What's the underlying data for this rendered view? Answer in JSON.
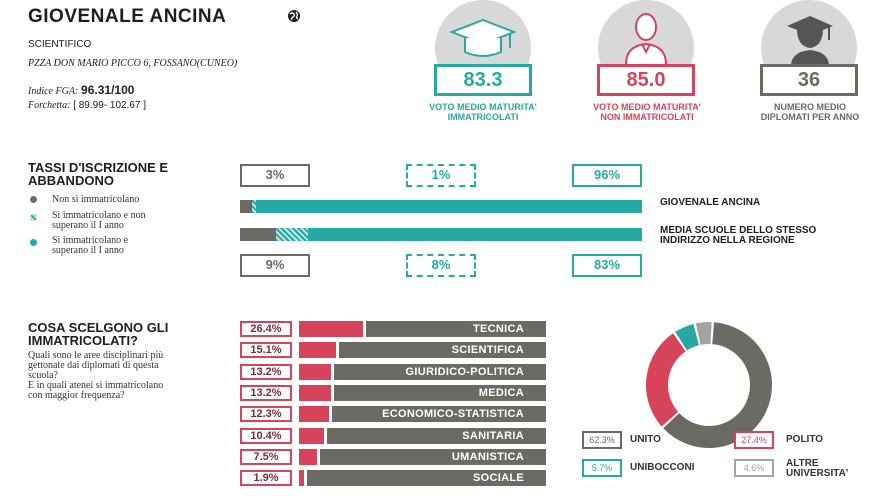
{
  "header": {
    "school_name": "GIOVENALE ANCINA",
    "type": "SCIENTIFICO",
    "address": "PZZA DON MARIO PICCO 6, FOSSANO(CUNEO)",
    "fga_label": "Indice FGA:",
    "fga_value": "96.31/100",
    "range_label": "Forchetta:",
    "range_value": "[ 89.99- 102.67 ]"
  },
  "metrics": [
    {
      "value": "83.3",
      "caption_line1": "VOTO MEDIO MATURITA'",
      "caption_line2": "IMMATRICOLATI",
      "icon": "graduation-cap-icon",
      "color": "#27a9a3"
    },
    {
      "value": "85.0",
      "caption_line1": "VOTO MEDIO MATURITA'",
      "caption_line2": "NON IMMATRICOLATI",
      "icon": "person-icon",
      "color": "#d7435a"
    },
    {
      "value": "36",
      "caption_line1": "NUMERO MEDIO",
      "caption_line2": "DIPLOMATI PER ANNO",
      "icon": "graduate-person-icon",
      "color": "#6b6b63"
    }
  ],
  "enrollment": {
    "title_line1": "TASSI D'ISCRIZIONE E",
    "title_line2": "ABBANDONO",
    "legend": [
      {
        "line1": "Non si immatricolano",
        "line2": ""
      },
      {
        "line1": "Si immatricolano e non",
        "line2": "superano il I anno"
      },
      {
        "line1": "Si immatricolano e",
        "line2": "superano il I anno"
      }
    ],
    "school": {
      "label": "GIOVENALE ANCINA",
      "values": [
        "3%",
        "1%",
        "96%"
      ],
      "fractions": [
        0.03,
        0.01,
        0.96
      ]
    },
    "region": {
      "label_line1": "MEDIA SCUOLE DELLO STESSO",
      "label_line2": "INDIRIZZO NELLA REGIONE",
      "values": [
        "9%",
        "8%",
        "83%"
      ],
      "fractions": [
        0.09,
        0.08,
        0.83
      ]
    }
  },
  "choices": {
    "title_line1": "COSA SCELGONO GLI",
    "title_line2": "IMMATRICOLATI?",
    "question1_line1": "Quali sono le aree disciplinari più",
    "question1_line2": "gettonate dai diplomati di questa",
    "question1_line3": "scuola?",
    "question2_line1": "E in quali atenei si immatricolano",
    "question2_line2": "con maggior frequenza?",
    "areas": [
      {
        "pct": "26.4%",
        "label": "TECNICA",
        "value": 26.4
      },
      {
        "pct": "15.1%",
        "label": "SCIENTIFICA",
        "value": 15.1
      },
      {
        "pct": "13.2%",
        "label": "GIURIDICO-POLITICA",
        "value": 13.2
      },
      {
        "pct": "13.2%",
        "label": "MEDICA",
        "value": 13.2
      },
      {
        "pct": "12.3%",
        "label": "ECONOMICO-STATISTICA",
        "value": 12.3
      },
      {
        "pct": "10.4%",
        "label": "SANITARIA",
        "value": 10.4
      },
      {
        "pct": "7.5%",
        "label": "UMANISTICA",
        "value": 7.5
      },
      {
        "pct": "1.9%",
        "label": "SOCIALE",
        "value": 1.9
      }
    ],
    "universities": [
      {
        "pct": "62.3%",
        "label_line1": "UNITO",
        "label_line2": "",
        "value": 62.3,
        "color": "#6b6b63"
      },
      {
        "pct": "27.4%",
        "label_line1": "POLITO",
        "label_line2": "",
        "value": 27.4,
        "color": "#d7435a"
      },
      {
        "pct": "5.7%",
        "label_line1": "UNIBOCCONI",
        "label_line2": "",
        "value": 5.7,
        "color": "#27a9a3"
      },
      {
        "pct": "4.6%",
        "label_line1": "ALTRE",
        "label_line2": "UNIVERSITA'",
        "value": 4.6,
        "color": "#a3a3a3"
      }
    ]
  },
  "colors": {
    "teal": "#27a9a3",
    "red": "#d7435a",
    "gray": "#6b6b63",
    "lightgray": "#a3a3a3",
    "circle_bg": "#d8d8d8"
  }
}
